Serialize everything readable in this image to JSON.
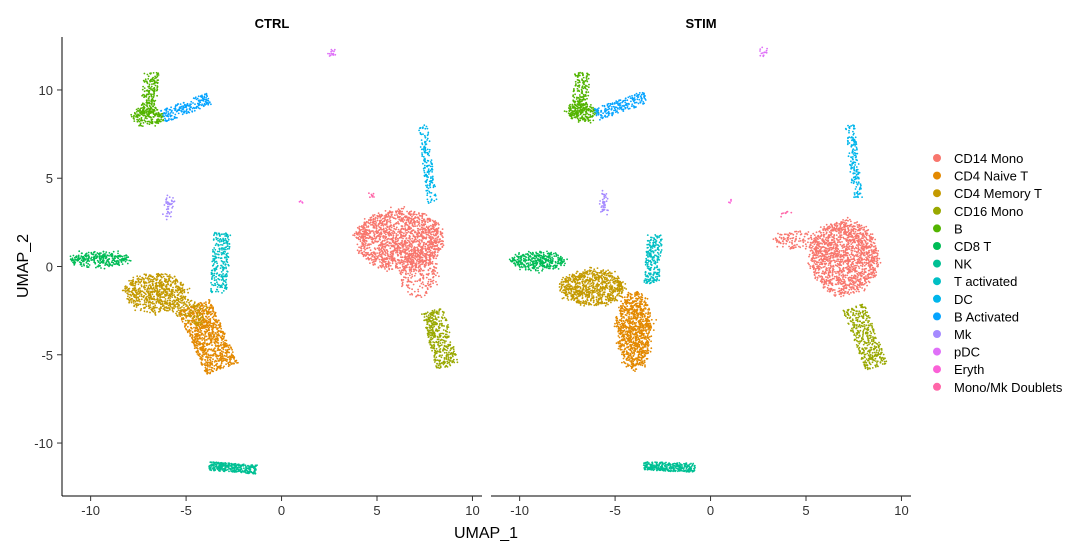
{
  "chart_data": {
    "type": "scatter",
    "panels": [
      {
        "title": "CTRL"
      },
      {
        "title": "STIM"
      }
    ],
    "xlabel": "UMAP_1",
    "ylabel": "UMAP_2",
    "xlim": [
      -11.5,
      10.5
    ],
    "ylim": [
      -13,
      13
    ],
    "xticks": [
      -10,
      -5,
      0,
      5,
      10
    ],
    "yticks": [
      -10,
      -5,
      0,
      5,
      10
    ],
    "grid": false,
    "legend_position": "right",
    "series": [
      {
        "name": "CD14 Mono",
        "color": "#F8766D"
      },
      {
        "name": "CD4 Naive T",
        "color": "#E38900"
      },
      {
        "name": "CD4 Memory T",
        "color": "#C49A00"
      },
      {
        "name": "CD16 Mono",
        "color": "#99A800"
      },
      {
        "name": "B",
        "color": "#53B400"
      },
      {
        "name": "CD8 T",
        "color": "#00BC56"
      },
      {
        "name": "NK",
        "color": "#00C094"
      },
      {
        "name": "T activated",
        "color": "#00BFC4"
      },
      {
        "name": "DC",
        "color": "#00B6EB"
      },
      {
        "name": "B Activated",
        "color": "#06A4FF"
      },
      {
        "name": "Mk",
        "color": "#A58AFF"
      },
      {
        "name": "pDC",
        "color": "#DF70F8"
      },
      {
        "name": "Eryth",
        "color": "#FB61D7"
      },
      {
        "name": "Mono/Mk Doublets",
        "color": "#FF66A8"
      }
    ],
    "clusters": {
      "CTRL": [
        {
          "series": 0,
          "shape": "ellipse",
          "cx": 6.2,
          "cy": 1.5,
          "rx": 2.3,
          "ry": 1.7,
          "n": 1500
        },
        {
          "series": 0,
          "shape": "ellipse",
          "cx": 7.2,
          "cy": -0.3,
          "rx": 1.0,
          "ry": 1.4,
          "n": 250
        },
        {
          "series": 0,
          "shape": "ellipse",
          "cx": 4.3,
          "cy": 1.8,
          "rx": 0.5,
          "ry": 0.3,
          "n": 30
        },
        {
          "series": 1,
          "shape": "segment",
          "x0": -4.6,
          "y0": -2.2,
          "x1": -3.1,
          "y1": -5.8,
          "w": 0.9,
          "n": 900
        },
        {
          "series": 2,
          "shape": "ellipse",
          "cx": -6.6,
          "cy": -1.5,
          "rx": 1.6,
          "ry": 1.1,
          "n": 700
        },
        {
          "series": 2,
          "shape": "segment",
          "x0": -5.5,
          "y0": -2.2,
          "x1": -4.0,
          "y1": -2.9,
          "w": 0.6,
          "n": 120
        },
        {
          "series": 3,
          "shape": "segment",
          "x0": 7.9,
          "y0": -2.5,
          "x1": 8.7,
          "y1": -5.7,
          "w": 0.6,
          "n": 400
        },
        {
          "series": 4,
          "shape": "segment",
          "x0": -6.8,
          "y0": 11.0,
          "x1": -7.0,
          "y1": 8.6,
          "w": 0.4,
          "n": 180
        },
        {
          "series": 4,
          "shape": "ellipse",
          "cx": -7.0,
          "cy": 8.5,
          "rx": 0.8,
          "ry": 0.5,
          "n": 180
        },
        {
          "series": 5,
          "shape": "ellipse",
          "cx": -9.5,
          "cy": 0.4,
          "rx": 1.6,
          "ry": 0.4,
          "n": 300
        },
        {
          "series": 6,
          "shape": "segment",
          "x0": -3.8,
          "y0": -11.3,
          "x1": -1.3,
          "y1": -11.5,
          "w": 0.25,
          "n": 320
        },
        {
          "series": 7,
          "shape": "segment",
          "x0": -3.1,
          "y0": 1.9,
          "x1": -3.3,
          "y1": -1.5,
          "w": 0.45,
          "n": 260
        },
        {
          "series": 8,
          "shape": "segment",
          "x0": 7.4,
          "y0": 8.0,
          "x1": 7.9,
          "y1": 3.6,
          "w": 0.25,
          "n": 160
        },
        {
          "series": 9,
          "shape": "segment",
          "x0": -6.2,
          "y0": 8.5,
          "x1": -3.8,
          "y1": 9.5,
          "w": 0.35,
          "n": 200
        },
        {
          "series": 10,
          "shape": "ellipse",
          "cx": -5.9,
          "cy": 3.4,
          "rx": 0.2,
          "ry": 0.6,
          "n": 40
        },
        {
          "series": 11,
          "shape": "ellipse",
          "cx": 2.6,
          "cy": 12.1,
          "rx": 0.2,
          "ry": 0.2,
          "n": 15
        },
        {
          "series": 12,
          "shape": "ellipse",
          "cx": 1.0,
          "cy": 3.7,
          "rx": 0.1,
          "ry": 0.1,
          "n": 4
        },
        {
          "series": 13,
          "shape": "ellipse",
          "cx": 4.8,
          "cy": 4.0,
          "rx": 0.2,
          "ry": 0.1,
          "n": 8
        }
      ],
      "STIM": [
        {
          "series": 0,
          "shape": "ellipse",
          "cx": 7.0,
          "cy": 0.5,
          "rx": 1.8,
          "ry": 2.1,
          "n": 1500
        },
        {
          "series": 0,
          "shape": "ellipse",
          "cx": 4.5,
          "cy": 1.5,
          "rx": 1.2,
          "ry": 0.5,
          "n": 120
        },
        {
          "series": 1,
          "shape": "ellipse",
          "cx": -4.0,
          "cy": -3.6,
          "rx": 0.9,
          "ry": 2.2,
          "n": 1000
        },
        {
          "series": 2,
          "shape": "ellipse",
          "cx": -6.2,
          "cy": -1.2,
          "rx": 1.7,
          "ry": 1.0,
          "n": 800
        },
        {
          "series": 3,
          "shape": "segment",
          "x0": 7.5,
          "y0": -2.3,
          "x1": 8.7,
          "y1": -5.7,
          "w": 0.6,
          "n": 400
        },
        {
          "series": 4,
          "shape": "segment",
          "x0": -6.7,
          "y0": 11.0,
          "x1": -6.9,
          "y1": 8.6,
          "w": 0.4,
          "n": 180
        },
        {
          "series": 4,
          "shape": "ellipse",
          "cx": -6.8,
          "cy": 8.7,
          "rx": 0.8,
          "ry": 0.5,
          "n": 180
        },
        {
          "series": 5,
          "shape": "ellipse",
          "cx": -9.0,
          "cy": 0.3,
          "rx": 1.4,
          "ry": 0.5,
          "n": 350
        },
        {
          "series": 6,
          "shape": "segment",
          "x0": -3.5,
          "y0": -11.3,
          "x1": -0.8,
          "y1": -11.4,
          "w": 0.25,
          "n": 320
        },
        {
          "series": 7,
          "shape": "segment",
          "x0": -2.9,
          "y0": 1.8,
          "x1": -3.1,
          "y1": -1.0,
          "w": 0.4,
          "n": 240
        },
        {
          "series": 8,
          "shape": "segment",
          "x0": 7.3,
          "y0": 8.0,
          "x1": 7.7,
          "y1": 3.9,
          "w": 0.25,
          "n": 160
        },
        {
          "series": 9,
          "shape": "segment",
          "x0": -6.0,
          "y0": 8.6,
          "x1": -3.4,
          "y1": 9.6,
          "w": 0.35,
          "n": 200
        },
        {
          "series": 10,
          "shape": "ellipse",
          "cx": -5.6,
          "cy": 3.6,
          "rx": 0.2,
          "ry": 0.6,
          "n": 40
        },
        {
          "series": 11,
          "shape": "ellipse",
          "cx": 2.8,
          "cy": 12.1,
          "rx": 0.2,
          "ry": 0.2,
          "n": 15
        },
        {
          "series": 12,
          "shape": "ellipse",
          "cx": 1.0,
          "cy": 3.7,
          "rx": 0.1,
          "ry": 0.1,
          "n": 4
        },
        {
          "series": 13,
          "shape": "ellipse",
          "cx": 3.8,
          "cy": 3.0,
          "rx": 0.2,
          "ry": 0.1,
          "n": 8
        }
      ]
    }
  }
}
